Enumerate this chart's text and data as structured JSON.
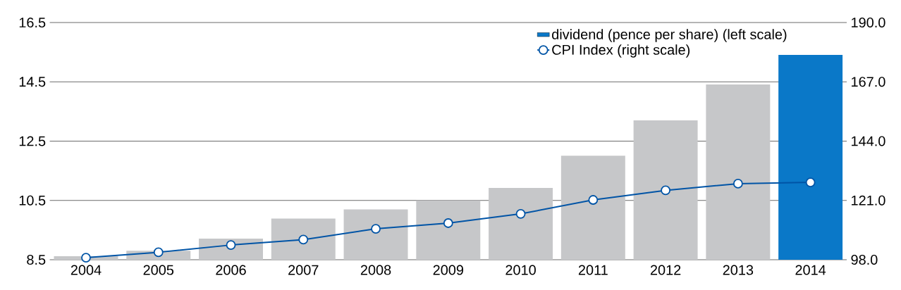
{
  "chart_data": {
    "type": "bar",
    "categories": [
      "2004",
      "2005",
      "2006",
      "2007",
      "2008",
      "2009",
      "2010",
      "2011",
      "2012",
      "2013",
      "2014"
    ],
    "series": [
      {
        "name": "dividend (pence per share) (left scale)",
        "color": "#0a78c8",
        "colors": [
          "#c6c7c9",
          "#c6c7c9",
          "#c6c7c9",
          "#c6c7c9",
          "#c6c7c9",
          "#c6c7c9",
          "#c6c7c9",
          "#c6c7c9",
          "#c6c7c9",
          "#c6c7c9",
          "#0a78c8"
        ],
        "values": [
          8.62,
          8.8,
          9.21,
          9.89,
          10.2,
          10.5,
          10.92,
          12.01,
          13.2,
          14.41,
          15.41
        ]
      },
      {
        "name": "CPI Index (right scale)",
        "type": "line",
        "axis": "y2",
        "color": "#0054a6",
        "marker": "circle",
        "values": [
          98.8,
          100.9,
          103.7,
          105.8,
          110.0,
          112.2,
          115.8,
          121.2,
          124.9,
          127.5,
          128.0
        ]
      }
    ],
    "ylim": [
      8.5,
      16.5
    ],
    "yticks": [
      8.5,
      10.5,
      12.5,
      14.5,
      16.5
    ],
    "y2lim": [
      98,
      190
    ],
    "y2ticks": [
      {
        "value": 98,
        "label": "98.0"
      },
      {
        "value": 121,
        "label": "121.0"
      },
      {
        "value": 144,
        "label": "144.0"
      },
      {
        "value": 167,
        "label": "167.0"
      },
      {
        "value": 190,
        "label": "190.0"
      }
    ],
    "grid": "y",
    "legend": "top right"
  }
}
